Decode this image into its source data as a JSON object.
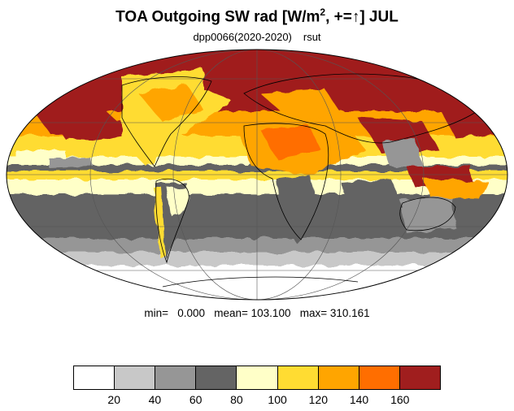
{
  "title": {
    "prefix": "TOA Outgoing SW rad [W/m",
    "exponent": "2",
    "middle": ", +=",
    "arrow": "↑",
    "suffix": "] JUL"
  },
  "subtitle": {
    "run": "dpp0066(2020-2020)",
    "variable": "rsut"
  },
  "stats": {
    "text": "min=   0.000   mean= 103.100   max= 310.161"
  },
  "colorbar": {
    "colors": [
      "#ffffff",
      "#c8c8c8",
      "#969696",
      "#646464",
      "#ffffc8",
      "#ffdc32",
      "#ffa500",
      "#ff6e00",
      "#a01e1e"
    ],
    "labels": [
      "20",
      "40",
      "60",
      "80",
      "100",
      "120",
      "140",
      "160"
    ]
  },
  "colors": {
    "ocean_dark": "#646464",
    "ocean_mid": "#969696",
    "ocean_light": "#c8c8c8",
    "cloud_pale": "#ffffc8",
    "cloud_yellow": "#ffdc32",
    "cloud_orange": "#ffa500",
    "cloud_deep": "#ff6e00",
    "cloud_max": "#a01e1e",
    "land_line": "#000000"
  }
}
